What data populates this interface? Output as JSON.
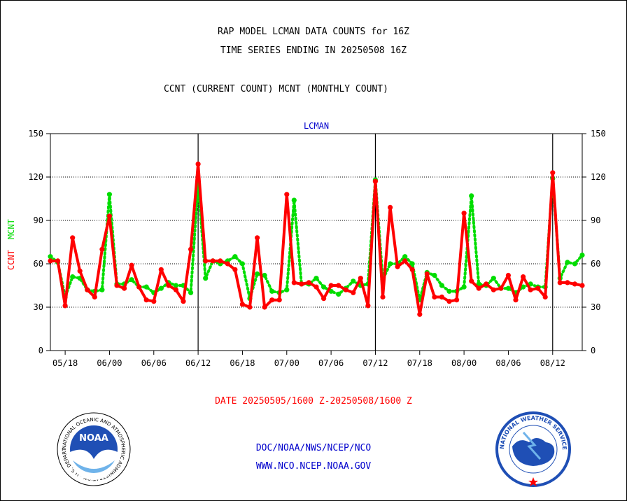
{
  "header": {
    "title_line1": "RAP MODEL LCMAN DATA COUNTS for 16Z",
    "title_line2": "TIME SERIES ENDING IN 20250508 16Z",
    "subtitle": "CCNT (CURRENT COUNT) MCNT (MONTHLY COUNT)"
  },
  "footer": {
    "date_range": "DATE 20250505/1600 Z-20250508/1600 Z",
    "org_line": "DOC/NOAA/NWS/NCEP/NCO",
    "website": "WWW.NCO.NCEP.NOAA.GOV"
  },
  "logos": {
    "noaa_text": "NOAA",
    "noaa_ring_text": "NATIONAL OCEANIC AND ATMOSPHERIC ADMINISTRATION · U.S. DEPARTMENT OF COMMERCE ·",
    "nws_ring_text": "NATIONAL WEATHER SERVICE"
  },
  "colors": {
    "ccnt": "#ff0000",
    "mcnt": "#00dd00",
    "panel_title": "#0000cc",
    "footer_red": "#ff0000",
    "footer_blue": "#0000cc"
  },
  "chart_data": {
    "type": "line",
    "panel_title": "LCMAN",
    "ylabel_ccnt": "CCNT",
    "ylabel_mcnt": "MCNT",
    "ylim": [
      0,
      150
    ],
    "yticks": [
      0,
      30,
      60,
      90,
      120,
      150
    ],
    "xlim": [
      0,
      72
    ],
    "x_tick_positions": [
      2,
      8,
      14,
      20,
      26,
      32,
      38,
      44,
      50,
      56,
      62,
      68
    ],
    "x_tick_labels": [
      "05/18",
      "06/00",
      "06/06",
      "06/12",
      "06/18",
      "07/00",
      "07/06",
      "07/12",
      "07/18",
      "08/00",
      "08/06",
      "08/12"
    ],
    "day_boundaries": [
      20,
      44,
      68
    ],
    "grid": "horizontal at 30, 60, 90, 120",
    "series": [
      {
        "name": "CCNT",
        "values": [
          62,
          62,
          31,
          78,
          55,
          42,
          37,
          70,
          93,
          45,
          43,
          59,
          44,
          35,
          34,
          56,
          45,
          42,
          34,
          70,
          129,
          62,
          62,
          62,
          60,
          56,
          32,
          30,
          78,
          30,
          35,
          35,
          108,
          47,
          46,
          47,
          44,
          36,
          45,
          45,
          42,
          40,
          50,
          31,
          117,
          37,
          99,
          58,
          62,
          56,
          25,
          53,
          37,
          37,
          34,
          35,
          95,
          48,
          43,
          46,
          42,
          43,
          52,
          35,
          51,
          42,
          43,
          37,
          123,
          47,
          47,
          46,
          45
        ]
      },
      {
        "name": "MCNT",
        "values": [
          65,
          61,
          37,
          51,
          50,
          42,
          41,
          42,
          108,
          46,
          46,
          49,
          44,
          44,
          40,
          43,
          47,
          45,
          45,
          40,
          116,
          50,
          62,
          60,
          62,
          65,
          60,
          36,
          53,
          52,
          41,
          40,
          42,
          104,
          46,
          46,
          50,
          44,
          41,
          39,
          43,
          48,
          45,
          46,
          118,
          49,
          60,
          60,
          65,
          60,
          35,
          54,
          52,
          45,
          41,
          41,
          44,
          107,
          46,
          45,
          50,
          43,
          43,
          40,
          44,
          46,
          44,
          44,
          119,
          50,
          61,
          60,
          66
        ]
      }
    ]
  }
}
